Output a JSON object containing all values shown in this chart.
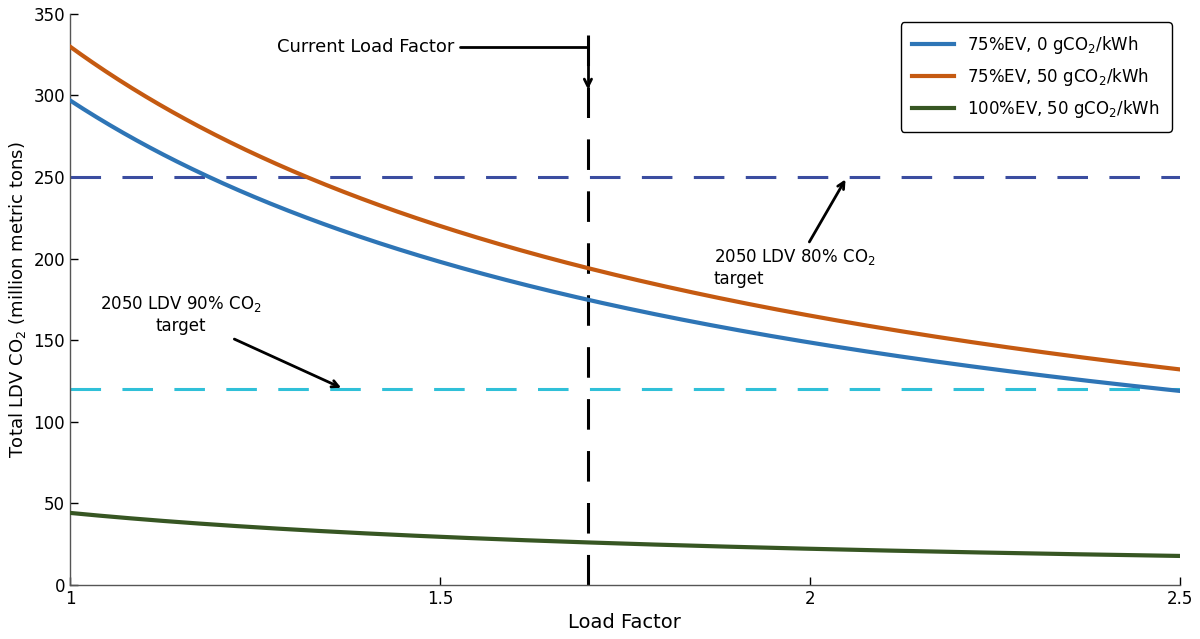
{
  "x_min": 1.0,
  "x_max": 2.5,
  "y_min": 0,
  "y_max": 350,
  "current_load_factor": 1.7,
  "hline_80pct": 250,
  "hline_90pct": 120,
  "hline_80pct_color": "#3B4DA0",
  "hline_90pct_color": "#30C0D8",
  "line1_color": "#2E75B6",
  "line2_color": "#C55A11",
  "line3_color": "#375623",
  "line1_label": "75%EV, 0 gCO$_2$/kWh",
  "line2_label": "75%EV, 50 gCO$_2$/kWh",
  "line3_label": "100%EV, 50 gCO$_2$/kWh",
  "xlabel": "Load Factor",
  "ylabel": "Total LDV CO$_2$ (million metric tons)",
  "line1_scale": 297,
  "line2_scale": 330,
  "line3_y_at_1": 44,
  "line3_y_at_2p5": 17,
  "yticks": [
    0,
    50,
    100,
    150,
    200,
    250,
    300,
    350
  ],
  "xticks": [
    1.0,
    1.5,
    2.0,
    2.5
  ],
  "xticklabels": [
    "1",
    "1.5",
    "2",
    "2.5"
  ],
  "annotation1_text": "Current Load Factor",
  "annotation2_text": "2050 LDV 90% CO$_2$\ntarget",
  "annotation3_text": "2050 LDV 80% CO$_2$\ntarget"
}
